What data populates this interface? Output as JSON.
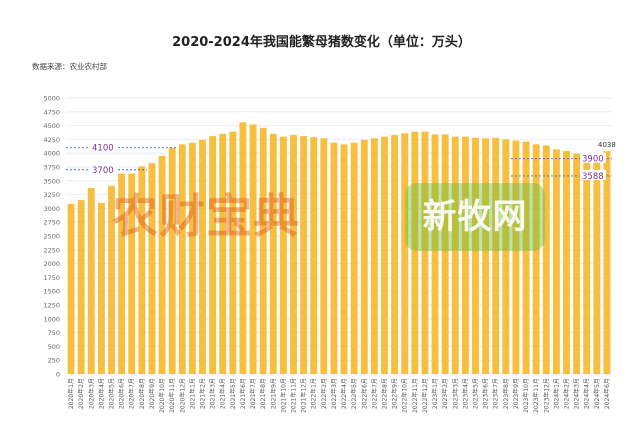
{
  "header": {
    "title": "2020-2024年我国能繁母猪数变化（单位：万头）",
    "source": "数据来源：农业农村部"
  },
  "watermarks": {
    "left": "农财宝典",
    "right": "新牧网"
  },
  "colors": {
    "bar": "#F7BE3F",
    "refline": "#3C6DB3",
    "reflabel": "#7A2E9A",
    "grid": "#E8E8E8"
  },
  "chart_data": {
    "type": "bar",
    "title": "2020-2024年我国能繁母猪数变化（单位：万头）",
    "ylim": [
      0,
      5000
    ],
    "yticks": [
      0,
      250,
      500,
      750,
      1000,
      1250,
      1500,
      1750,
      2000,
      2250,
      2500,
      2750,
      3000,
      3250,
      3500,
      3750,
      4000,
      4250,
      4500,
      4750,
      5000
    ],
    "categories": [
      "2020年1月",
      "2020年2月",
      "2020年3月",
      "2020年4月",
      "2020年5月",
      "2020年6月",
      "2020年7月",
      "2020年8月",
      "2020年9月",
      "2020年10月",
      "2020年11月",
      "2020年12月",
      "2021年1月",
      "2021年2月",
      "2021年3月",
      "2021年4月",
      "2021年5月",
      "2021年6月",
      "2021年7月",
      "2021年8月",
      "2021年9月",
      "2021年10月",
      "2021年11月",
      "2021年12月",
      "2022年1月",
      "2022年2月",
      "2022年3月",
      "2022年4月",
      "2022年5月",
      "2022年6月",
      "2022年7月",
      "2022年8月",
      "2022年9月",
      "2022年10月",
      "2022年11月",
      "2022年12月",
      "2023年1月",
      "2023年2月",
      "2023年3月",
      "2023年4月",
      "2023年5月",
      "2023年6月",
      "2023年7月",
      "2023年8月",
      "2023年9月",
      "2023年10月",
      "2023年11月",
      "2023年12月",
      "2024年1月",
      "2024年2月",
      "2024年3月",
      "2024年4月",
      "2024年5月",
      "2024年6月"
    ],
    "values": [
      3080,
      3150,
      3370,
      3100,
      3410,
      3630,
      3630,
      3760,
      3820,
      3950,
      4100,
      4160,
      4190,
      4240,
      4310,
      4350,
      4390,
      4560,
      4520,
      4460,
      4350,
      4300,
      4330,
      4310,
      4290,
      4270,
      4190,
      4160,
      4190,
      4240,
      4270,
      4300,
      4330,
      4360,
      4390,
      4390,
      4340,
      4340,
      4300,
      4300,
      4280,
      4270,
      4280,
      4250,
      4230,
      4210,
      4160,
      4140,
      4070,
      4040,
      3990,
      3990,
      3990,
      4038
    ],
    "data_labels": [
      {
        "index": 53,
        "text": "4038"
      }
    ],
    "reference_lines": [
      {
        "value": 4100,
        "label": "4100",
        "from_index": 0,
        "to_index": 10
      },
      {
        "value": 3700,
        "label": "3700",
        "from_index": 0,
        "to_index": 7
      },
      {
        "value": 3900,
        "label": "3900",
        "from_index": 44,
        "to_index": 53
      },
      {
        "value": 3588,
        "label": "3588",
        "from_index": 44,
        "to_index": 53
      }
    ],
    "grid": true
  }
}
